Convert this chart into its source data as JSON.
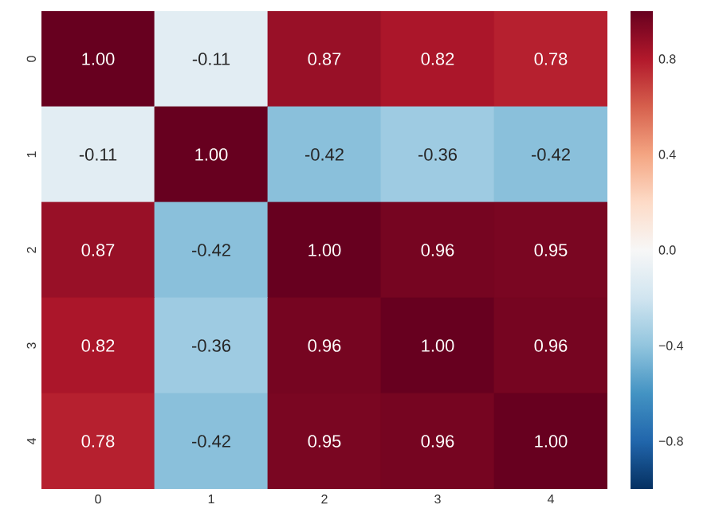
{
  "chart_data": {
    "type": "heatmap",
    "categories": [
      "0",
      "1",
      "2",
      "3",
      "4"
    ],
    "y_categories": [
      "0",
      "1",
      "2",
      "3",
      "4"
    ],
    "cells": [
      [
        1.0,
        -0.11,
        0.87,
        0.82,
        0.78
      ],
      [
        -0.11,
        1.0,
        -0.42,
        -0.36,
        -0.42
      ],
      [
        0.87,
        -0.42,
        1.0,
        0.96,
        0.95
      ],
      [
        0.82,
        -0.36,
        0.96,
        1.0,
        0.96
      ],
      [
        0.78,
        -0.42,
        0.95,
        0.96,
        1.0
      ]
    ],
    "cell_labels": [
      [
        "1.00",
        "-0.11",
        "0.87",
        "0.82",
        "0.78"
      ],
      [
        "-0.11",
        "1.00",
        "-0.42",
        "-0.36",
        "-0.42"
      ],
      [
        "0.87",
        "-0.42",
        "1.00",
        "0.96",
        "0.95"
      ],
      [
        "0.82",
        "-0.36",
        "0.96",
        "1.00",
        "0.96"
      ],
      [
        "0.78",
        "-0.42",
        "0.95",
        "0.96",
        "1.00"
      ]
    ],
    "clim": [
      -1,
      1
    ],
    "cticks": [
      {
        "value": -0.8,
        "label": "−0.8"
      },
      {
        "value": -0.4,
        "label": "−0.4"
      },
      {
        "value": 0,
        "label": "0.0"
      },
      0.4,
      0.8
    ]
  }
}
